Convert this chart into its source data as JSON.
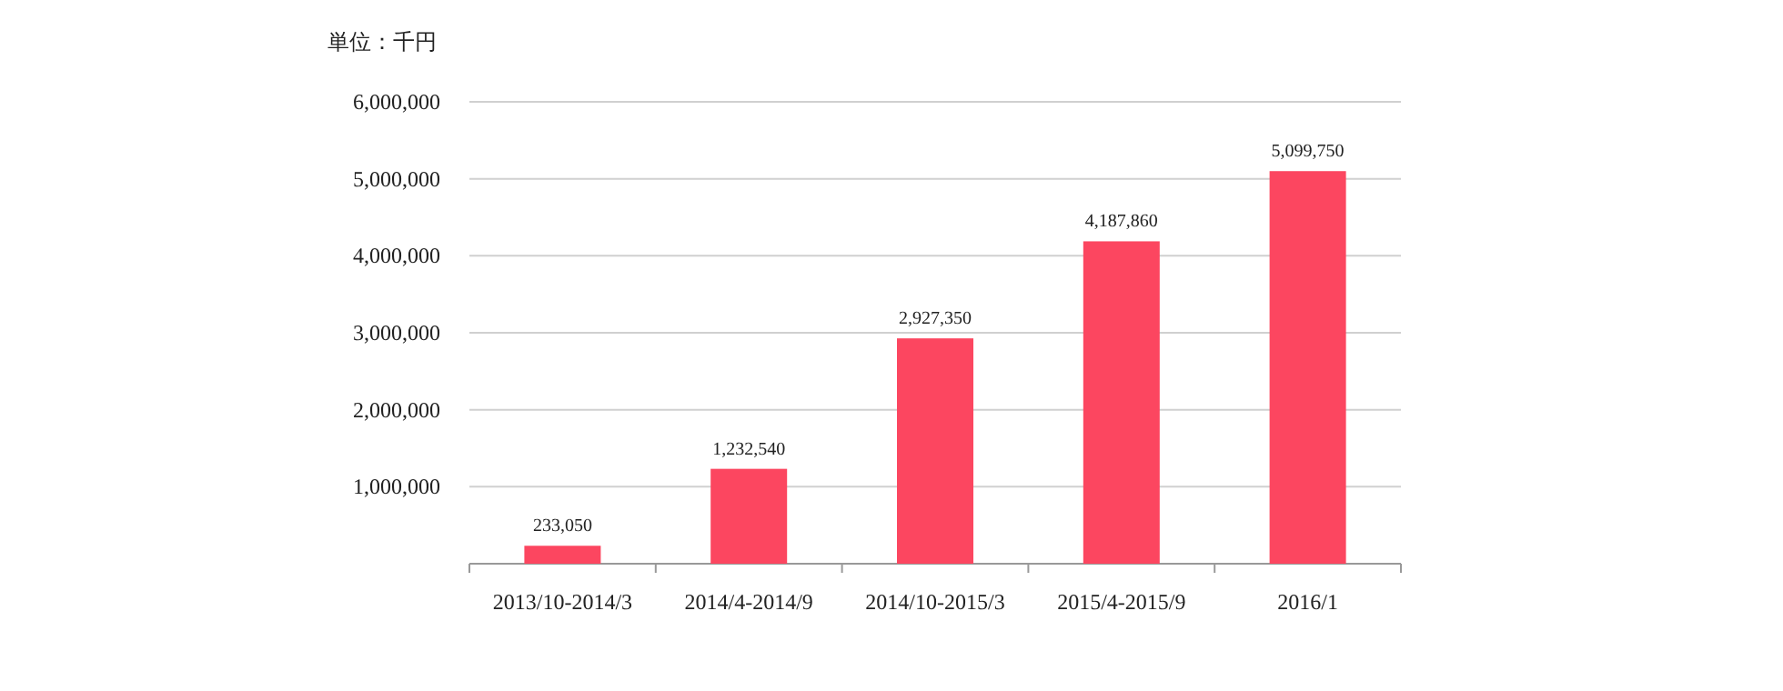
{
  "chart_data": {
    "type": "bar",
    "annotations": [
      "単位：千円"
    ],
    "categories": [
      "2013/10-2014/3",
      "2014/4-2014/9",
      "2014/10-2015/3",
      "2015/4-2015/9",
      "2016/1"
    ],
    "values": [
      233050,
      1232540,
      2927350,
      4187860,
      5099750
    ],
    "color": "#fc4660",
    "ylim": [
      0,
      6000000
    ],
    "yticks": [
      {
        "value": 1000000,
        "label": "1,000,000"
      },
      {
        "value": 2000000,
        "label": "2,000,000"
      },
      {
        "value": 3000000,
        "label": "3,000,000"
      },
      {
        "value": 4000000,
        "label": "4,000,000"
      },
      {
        "value": 5000000,
        "label": "5,000,000"
      },
      {
        "value": 6000000,
        "label": "6,000,000"
      }
    ],
    "value_labels": [
      "233,050",
      "1,232,540",
      "2,927,350",
      "4,187,860",
      "5,099,750"
    ],
    "grid": "y"
  }
}
